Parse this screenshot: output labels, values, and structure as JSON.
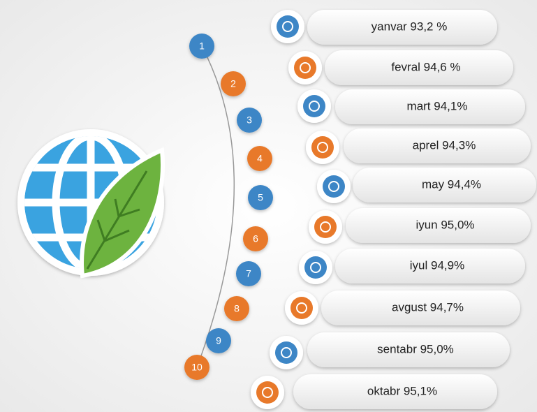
{
  "items": [
    {
      "number": "1",
      "label": "yanvar 93,2 %"
    },
    {
      "number": "2",
      "label": "fevral 94,6 %"
    },
    {
      "number": "3",
      "label": "mart 94,1%"
    },
    {
      "number": "4",
      "label": "aprel 94,3%"
    },
    {
      "number": "5",
      "label": "may 94,4%"
    },
    {
      "number": "6",
      "label": "iyun 95,0%"
    },
    {
      "number": "7",
      "label": "iyul 94,9%"
    },
    {
      "number": "8",
      "label": "avgust 94,7%"
    },
    {
      "number": "9",
      "label": "sentabr 95,0%"
    },
    {
      "number": "10",
      "label": "oktabr 95,1%"
    }
  ]
}
